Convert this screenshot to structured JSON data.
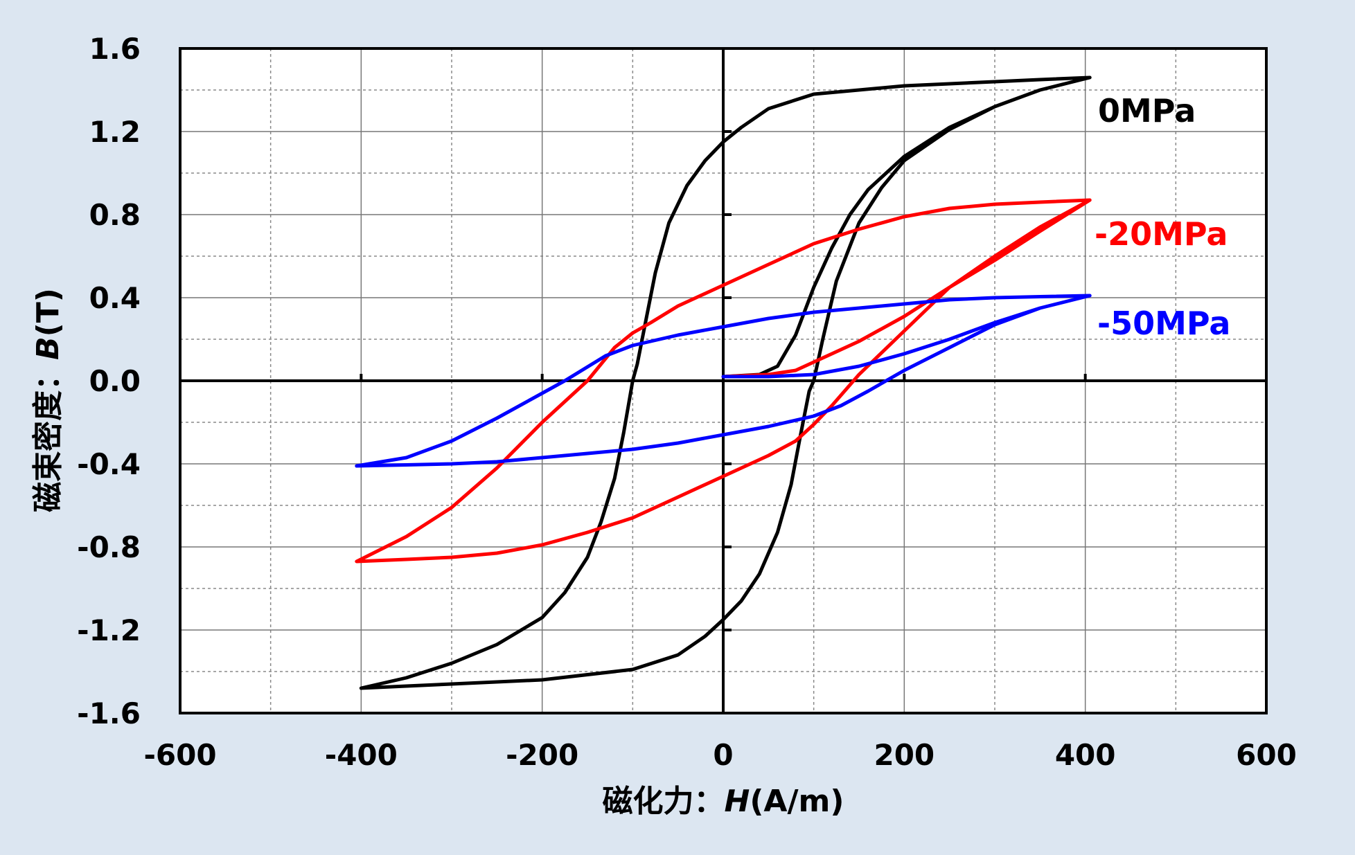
{
  "chart_data": {
    "type": "line",
    "xlabel": {
      "prefix": "磁化力：",
      "symbol": "H",
      "unit": "(A/m)"
    },
    "ylabel": {
      "prefix": "磁束密度：",
      "symbol": "B",
      "unit": "(T)"
    },
    "xlim": [
      -600,
      600
    ],
    "ylim": [
      -1.6,
      1.6
    ],
    "x_ticks": [
      -600,
      -400,
      -200,
      0,
      200,
      400,
      600
    ],
    "x_tick_labels": [
      "-600",
      "-400",
      "-200",
      "0",
      "200",
      "400",
      "600"
    ],
    "y_ticks": [
      1.6,
      1.2,
      0.8,
      0.4,
      0.0,
      -0.4,
      -0.8,
      -1.2,
      -1.6
    ],
    "y_tick_labels": [
      "1.6",
      "1.2",
      "0.8",
      "0.4",
      "0.0",
      "-0.4",
      "-0.8",
      "-1.2",
      "-1.6"
    ],
    "grid": true,
    "series": [
      {
        "name": "0MPa",
        "color": "#000000",
        "points": [
          [
            0,
            0.02
          ],
          [
            40,
            0.03
          ],
          [
            60,
            0.07
          ],
          [
            80,
            0.22
          ],
          [
            100,
            0.45
          ],
          [
            120,
            0.64
          ],
          [
            140,
            0.8
          ],
          [
            160,
            0.92
          ],
          [
            200,
            1.08
          ],
          [
            250,
            1.22
          ],
          [
            300,
            1.32
          ],
          [
            350,
            1.4
          ],
          [
            405,
            1.46
          ],
          [
            350,
            1.45
          ],
          [
            300,
            1.44
          ],
          [
            200,
            1.42
          ],
          [
            100,
            1.38
          ],
          [
            50,
            1.31
          ],
          [
            20,
            1.22
          ],
          [
            0,
            1.15
          ],
          [
            -20,
            1.06
          ],
          [
            -40,
            0.94
          ],
          [
            -60,
            0.76
          ],
          [
            -75,
            0.52
          ],
          [
            -85,
            0.3
          ],
          [
            -95,
            0.08
          ],
          [
            -100,
            0.0
          ],
          [
            -110,
            -0.25
          ],
          [
            -120,
            -0.47
          ],
          [
            -135,
            -0.68
          ],
          [
            -150,
            -0.85
          ],
          [
            -175,
            -1.02
          ],
          [
            -200,
            -1.14
          ],
          [
            -250,
            -1.27
          ],
          [
            -300,
            -1.36
          ],
          [
            -350,
            -1.43
          ],
          [
            -400,
            -1.48
          ],
          [
            -350,
            -1.47
          ],
          [
            -300,
            -1.46
          ],
          [
            -200,
            -1.44
          ],
          [
            -100,
            -1.39
          ],
          [
            -50,
            -1.32
          ],
          [
            -20,
            -1.23
          ],
          [
            0,
            -1.15
          ],
          [
            20,
            -1.06
          ],
          [
            40,
            -0.93
          ],
          [
            60,
            -0.73
          ],
          [
            75,
            -0.5
          ],
          [
            85,
            -0.27
          ],
          [
            95,
            -0.05
          ],
          [
            100,
            0.0
          ],
          [
            110,
            0.2
          ],
          [
            125,
            0.48
          ],
          [
            150,
            0.76
          ],
          [
            175,
            0.93
          ],
          [
            200,
            1.06
          ],
          [
            250,
            1.21
          ],
          [
            300,
            1.32
          ],
          [
            350,
            1.4
          ],
          [
            405,
            1.46
          ]
        ]
      },
      {
        "name": "-20MPa",
        "color": "#ff0000",
        "points": [
          [
            0,
            0.02
          ],
          [
            50,
            0.03
          ],
          [
            80,
            0.05
          ],
          [
            100,
            0.09
          ],
          [
            150,
            0.19
          ],
          [
            200,
            0.31
          ],
          [
            250,
            0.45
          ],
          [
            300,
            0.58
          ],
          [
            350,
            0.72
          ],
          [
            405,
            0.87
          ],
          [
            350,
            0.86
          ],
          [
            300,
            0.85
          ],
          [
            250,
            0.83
          ],
          [
            200,
            0.79
          ],
          [
            150,
            0.73
          ],
          [
            100,
            0.66
          ],
          [
            50,
            0.56
          ],
          [
            0,
            0.46
          ],
          [
            -50,
            0.36
          ],
          [
            -80,
            0.28
          ],
          [
            -100,
            0.23
          ],
          [
            -120,
            0.16
          ],
          [
            -150,
            0.0
          ],
          [
            -200,
            -0.2
          ],
          [
            -250,
            -0.42
          ],
          [
            -300,
            -0.61
          ],
          [
            -350,
            -0.75
          ],
          [
            -405,
            -0.87
          ],
          [
            -350,
            -0.86
          ],
          [
            -300,
            -0.85
          ],
          [
            -250,
            -0.83
          ],
          [
            -200,
            -0.79
          ],
          [
            -150,
            -0.73
          ],
          [
            -100,
            -0.66
          ],
          [
            -50,
            -0.56
          ],
          [
            0,
            -0.46
          ],
          [
            50,
            -0.36
          ],
          [
            80,
            -0.29
          ],
          [
            100,
            -0.21
          ],
          [
            120,
            -0.12
          ],
          [
            150,
            0.03
          ],
          [
            200,
            0.24
          ],
          [
            250,
            0.45
          ],
          [
            300,
            0.6
          ],
          [
            350,
            0.74
          ],
          [
            405,
            0.87
          ]
        ]
      },
      {
        "name": "-50MPa",
        "color": "#0000ff",
        "points": [
          [
            0,
            0.02
          ],
          [
            50,
            0.02
          ],
          [
            100,
            0.03
          ],
          [
            150,
            0.07
          ],
          [
            200,
            0.13
          ],
          [
            250,
            0.2
          ],
          [
            300,
            0.28
          ],
          [
            350,
            0.35
          ],
          [
            405,
            0.41
          ],
          [
            350,
            0.405
          ],
          [
            300,
            0.4
          ],
          [
            250,
            0.39
          ],
          [
            200,
            0.37
          ],
          [
            150,
            0.35
          ],
          [
            100,
            0.33
          ],
          [
            50,
            0.3
          ],
          [
            0,
            0.26
          ],
          [
            -50,
            0.22
          ],
          [
            -100,
            0.17
          ],
          [
            -130,
            0.12
          ],
          [
            -160,
            0.04
          ],
          [
            -175,
            0.0
          ],
          [
            -200,
            -0.06
          ],
          [
            -250,
            -0.18
          ],
          [
            -300,
            -0.29
          ],
          [
            -350,
            -0.37
          ],
          [
            -405,
            -0.41
          ],
          [
            -350,
            -0.405
          ],
          [
            -300,
            -0.4
          ],
          [
            -250,
            -0.39
          ],
          [
            -200,
            -0.37
          ],
          [
            -150,
            -0.35
          ],
          [
            -100,
            -0.33
          ],
          [
            -50,
            -0.3
          ],
          [
            0,
            -0.26
          ],
          [
            50,
            -0.22
          ],
          [
            100,
            -0.17
          ],
          [
            130,
            -0.12
          ],
          [
            160,
            -0.05
          ],
          [
            200,
            0.05
          ],
          [
            250,
            0.16
          ],
          [
            300,
            0.27
          ],
          [
            350,
            0.35
          ],
          [
            405,
            0.41
          ]
        ]
      }
    ]
  }
}
